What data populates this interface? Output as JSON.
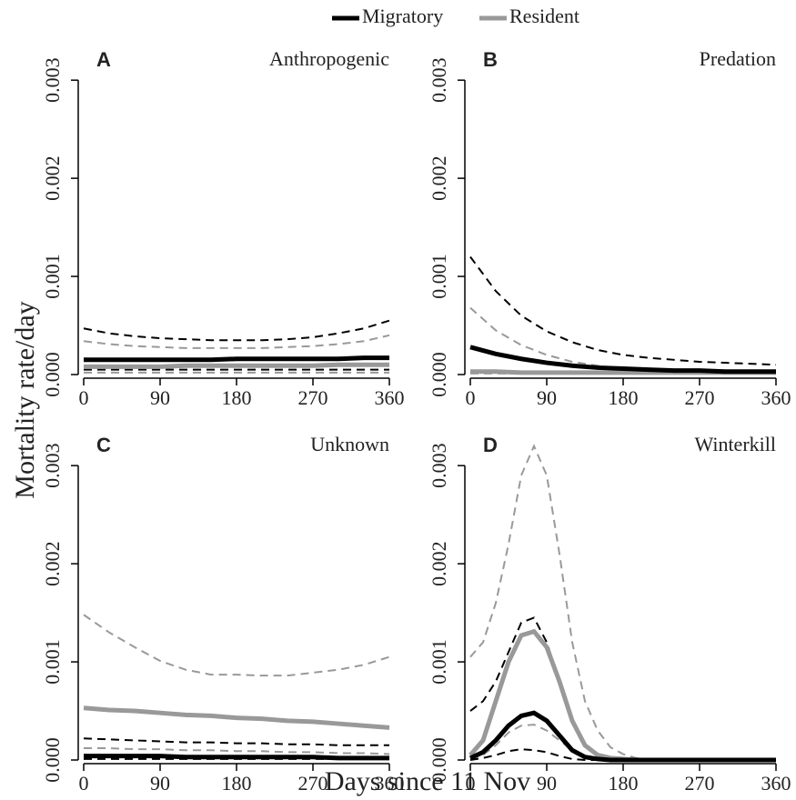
{
  "legend": [
    {
      "name": "Migratory",
      "color": "#000000"
    },
    {
      "name": "Resident",
      "color": "#999999"
    }
  ],
  "ylabel": "Mortality rate/day",
  "xlabel": "Days since 11 Nov",
  "chart_data": [
    {
      "type": "line",
      "panel": "A",
      "title": "Anthropogenic",
      "x": [
        0,
        30,
        60,
        90,
        120,
        150,
        180,
        210,
        240,
        270,
        300,
        330,
        360
      ],
      "xlim": [
        0,
        360
      ],
      "xticks": [
        0,
        90,
        180,
        270,
        360
      ],
      "ylim": [
        0,
        0.0034
      ],
      "yticks": [
        {
          "value": 0,
          "label": "0.000"
        },
        0.001,
        0.002,
        0.003
      ],
      "series": [
        {
          "color": "#999999",
          "style": "dashed",
          "values": [
            0.00034,
            0.00031,
            0.00029,
            0.00028,
            0.00027,
            0.00027,
            0.00027,
            0.00027,
            0.00028,
            0.00029,
            0.00031,
            0.00034,
            0.0004
          ]
        },
        {
          "color": "#999999",
          "style": "dashed",
          "values": [
            2e-05,
            2e-05,
            2e-05,
            2e-05,
            2e-05,
            2e-05,
            2e-05,
            2e-05,
            2e-05,
            2e-05,
            2e-05,
            2e-05,
            2e-05
          ]
        },
        {
          "color": "#000000",
          "style": "dashed",
          "values": [
            0.00047,
            0.00042,
            0.00039,
            0.00037,
            0.00036,
            0.00035,
            0.00035,
            0.00035,
            0.00036,
            0.00038,
            0.00042,
            0.00047,
            0.00055
          ]
        },
        {
          "color": "#000000",
          "style": "dashed",
          "values": [
            5e-05,
            5e-05,
            5e-05,
            5e-05,
            5e-05,
            5e-05,
            5e-05,
            5e-05,
            5e-05,
            5e-05,
            5e-05,
            5e-05,
            5e-05
          ]
        },
        {
          "color": "#999999",
          "style": "solid",
          "values": [
            8e-05,
            8e-05,
            8e-05,
            8e-05,
            9e-05,
            9e-05,
            9e-05,
            9e-05,
            9e-05,
            9e-05,
            0.0001,
            0.0001,
            0.0001
          ]
        },
        {
          "color": "#000000",
          "style": "solid",
          "values": [
            0.00015,
            0.00015,
            0.00015,
            0.00015,
            0.00015,
            0.00015,
            0.00016,
            0.00016,
            0.00016,
            0.00016,
            0.00016,
            0.00017,
            0.00017
          ]
        }
      ]
    },
    {
      "type": "line",
      "panel": "B",
      "title": "Predation",
      "x": [
        0,
        30,
        60,
        90,
        120,
        150,
        180,
        210,
        240,
        270,
        300,
        330,
        360
      ],
      "xlim": [
        0,
        360
      ],
      "xticks": [
        0,
        90,
        180,
        270,
        360
      ],
      "ylim": [
        0,
        0.0034
      ],
      "yticks": [
        {
          "value": 0,
          "label": "0.000"
        },
        0.001,
        0.002,
        0.003
      ],
      "series": [
        {
          "color": "#999999",
          "style": "dashed",
          "values": [
            0.00068,
            0.00045,
            0.0003,
            0.0002,
            0.00013,
            9e-05,
            6e-05,
            5e-05,
            4e-05,
            4e-05,
            3e-05,
            3e-05,
            3e-05
          ]
        },
        {
          "color": "#999999",
          "style": "dashed",
          "values": [
            1e-05,
            1e-05,
            1e-05,
            1e-05,
            1e-05,
            1e-05,
            1e-05,
            1e-05,
            1e-05,
            1e-05,
            1e-05,
            1e-05,
            1e-05
          ]
        },
        {
          "color": "#000000",
          "style": "dashed",
          "values": [
            0.0012,
            0.00085,
            0.0006,
            0.00044,
            0.00033,
            0.00025,
            0.0002,
            0.00017,
            0.00015,
            0.00013,
            0.00012,
            0.00011,
            0.0001
          ]
        },
        {
          "color": "#000000",
          "style": "dashed",
          "values": [
            4e-05,
            4e-05,
            3e-05,
            3e-05,
            2e-05,
            2e-05,
            2e-05,
            1e-05,
            1e-05,
            1e-05,
            1e-05,
            1e-05,
            1e-05
          ]
        },
        {
          "color": "#999999",
          "style": "solid",
          "values": [
            3e-05,
            3e-05,
            2e-05,
            2e-05,
            2e-05,
            2e-05,
            2e-05,
            2e-05,
            2e-05,
            2e-05,
            2e-05,
            2e-05,
            2e-05
          ]
        },
        {
          "color": "#000000",
          "style": "solid",
          "values": [
            0.00028,
            0.00021,
            0.00016,
            0.00012,
            9e-05,
            7e-05,
            6e-05,
            5e-05,
            4e-05,
            4e-05,
            3e-05,
            3e-05,
            3e-05
          ]
        }
      ]
    },
    {
      "type": "line",
      "panel": "C",
      "title": "Unknown",
      "x": [
        0,
        30,
        60,
        90,
        120,
        150,
        180,
        210,
        240,
        270,
        300,
        330,
        360
      ],
      "xlim": [
        0,
        360
      ],
      "xticks": [
        0,
        90,
        180,
        270,
        360
      ],
      "ylim": [
        0,
        0.0034
      ],
      "yticks": [
        {
          "value": 0,
          "label": "0.000"
        },
        0.001,
        0.002,
        0.003
      ],
      "series": [
        {
          "color": "#999999",
          "style": "dashed",
          "values": [
            0.00148,
            0.0013,
            0.00115,
            0.00101,
            0.00092,
            0.00087,
            0.00087,
            0.00086,
            0.00086,
            0.00089,
            0.00092,
            0.00097,
            0.00105
          ]
        },
        {
          "color": "#999999",
          "style": "dashed",
          "values": [
            0.00012,
            0.00012,
            0.00011,
            0.00011,
            0.0001,
            0.0001,
            9e-05,
            9e-05,
            8e-05,
            8e-05,
            7e-05,
            7e-05,
            6e-05
          ]
        },
        {
          "color": "#000000",
          "style": "dashed",
          "values": [
            0.00022,
            0.00021,
            0.0002,
            0.00019,
            0.00018,
            0.00018,
            0.00017,
            0.00017,
            0.00016,
            0.00016,
            0.00015,
            0.00015,
            0.00015
          ]
        },
        {
          "color": "#000000",
          "style": "dashed",
          "values": [
            1e-05,
            1e-05,
            1e-05,
            1e-05,
            1e-05,
            1e-05,
            1e-05,
            1e-05,
            1e-05,
            1e-05,
            1e-05,
            1e-05,
            1e-05
          ]
        },
        {
          "color": "#999999",
          "style": "solid",
          "values": [
            0.00053,
            0.00051,
            0.0005,
            0.00048,
            0.00046,
            0.00045,
            0.00043,
            0.00042,
            0.0004,
            0.00039,
            0.00037,
            0.00035,
            0.00033
          ]
        },
        {
          "color": "#000000",
          "style": "solid",
          "values": [
            4e-05,
            4e-05,
            4e-05,
            4e-05,
            3e-05,
            3e-05,
            3e-05,
            3e-05,
            3e-05,
            3e-05,
            2e-05,
            2e-05,
            2e-05
          ]
        }
      ]
    },
    {
      "type": "line",
      "panel": "D",
      "title": "Winterkill",
      "x": [
        0,
        15,
        30,
        45,
        60,
        75,
        90,
        105,
        120,
        135,
        150,
        165,
        180,
        195,
        210,
        225,
        240,
        255,
        270,
        285,
        300,
        315,
        330,
        345,
        360
      ],
      "xlim": [
        0,
        360
      ],
      "xticks": [
        0,
        90,
        180,
        270,
        360
      ],
      "ylim": [
        0,
        0.0034
      ],
      "yticks": [
        {
          "value": 0,
          "label": "0.000"
        },
        0.001,
        0.002,
        0.003
      ],
      "series": [
        {
          "color": "#999999",
          "style": "dashed",
          "values": [
            0.00105,
            0.0012,
            0.0016,
            0.0022,
            0.0029,
            0.0032,
            0.0029,
            0.0021,
            0.0012,
            0.0006,
            0.0003,
            0.00013,
            6e-05,
            2e-05,
            1e-05,
            0,
            0,
            0,
            0,
            0,
            0,
            0,
            0,
            0,
            0
          ]
        },
        {
          "color": "#999999",
          "style": "dashed",
          "values": [
            1e-05,
            5e-05,
            0.00015,
            0.00028,
            0.00035,
            0.00036,
            0.0003,
            0.0002,
            0.0001,
            3e-05,
            1e-05,
            0,
            0,
            0,
            0,
            0,
            0,
            0,
            0,
            0,
            0,
            0,
            0,
            0,
            0
          ]
        },
        {
          "color": "#000000",
          "style": "dashed",
          "values": [
            0.0005,
            0.0006,
            0.0008,
            0.0011,
            0.0014,
            0.00145,
            0.0012,
            0.0008,
            0.0004,
            0.00015,
            5e-05,
            2e-05,
            1e-05,
            0,
            0,
            0,
            0,
            0,
            0,
            0,
            0,
            0,
            0,
            0,
            0
          ]
        },
        {
          "color": "#000000",
          "style": "dashed",
          "values": [
            0,
            2e-05,
            5e-05,
            9e-05,
            0.00011,
            0.0001,
            8e-05,
            4e-05,
            1e-05,
            0,
            0,
            0,
            0,
            0,
            0,
            0,
            0,
            0,
            0,
            0,
            0,
            0,
            0,
            0,
            0
          ]
        },
        {
          "color": "#999999",
          "style": "solid",
          "values": [
            5e-05,
            0.0002,
            0.0006,
            0.001,
            0.00127,
            0.00131,
            0.00115,
            0.0008,
            0.0004,
            0.00015,
            5e-05,
            2e-05,
            1e-05,
            0,
            0,
            0,
            0,
            0,
            0,
            0,
            0,
            0,
            0,
            0,
            0
          ]
        },
        {
          "color": "#000000",
          "style": "solid",
          "values": [
            2e-05,
            8e-05,
            0.0002,
            0.00035,
            0.00045,
            0.00048,
            0.0004,
            0.00025,
            0.0001,
            3e-05,
            1e-05,
            0,
            0,
            0,
            0,
            0,
            0,
            0,
            0,
            0,
            0,
            0,
            0,
            0,
            0
          ]
        }
      ]
    }
  ]
}
